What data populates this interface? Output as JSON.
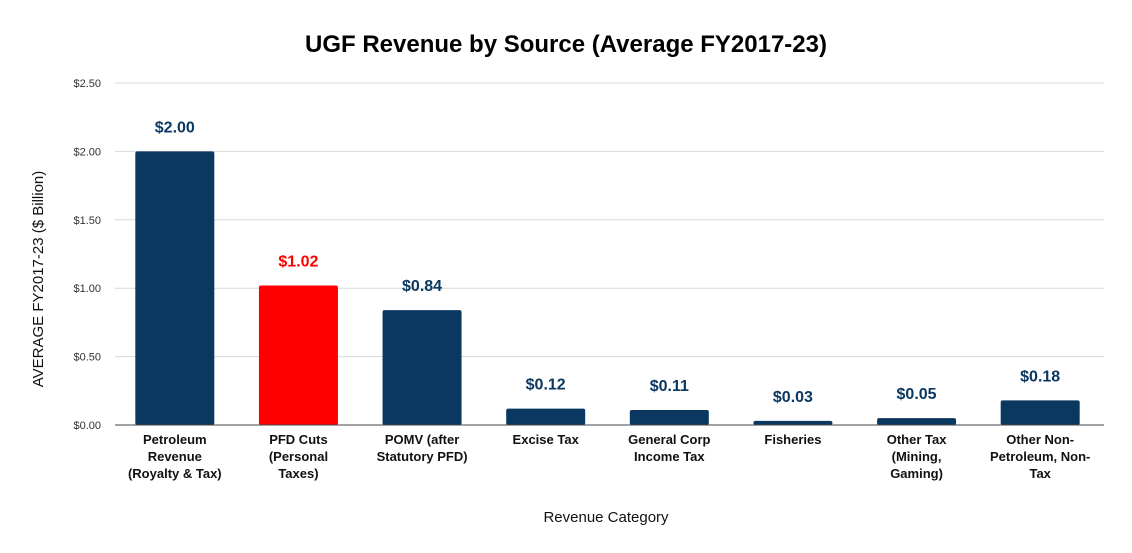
{
  "chart_data": {
    "type": "bar",
    "title": "UGF Revenue by Source (Average FY2017-23)",
    "xlabel": "Revenue Category",
    "ylabel": "AVERAGE FY2017-23 ($ Billion)",
    "ylim": [
      0,
      2.5
    ],
    "yticks": [
      {
        "value": 0,
        "label": "$0.00"
      },
      {
        "value": 0.5,
        "label": "$0.50"
      },
      {
        "value": 1.0,
        "label": "$1.00"
      },
      {
        "value": 1.5,
        "label": "$1.50"
      },
      {
        "value": 2.0,
        "label": "$2.00"
      },
      {
        "value": 2.5,
        "label": "$2.50"
      }
    ],
    "grid": true,
    "legend": "none",
    "categories": [
      [
        "Petroleum",
        "Revenue",
        "(Royalty & Tax)"
      ],
      [
        "PFD Cuts",
        "(Personal",
        "Taxes)"
      ],
      [
        "POMV (after",
        "Statutory PFD)"
      ],
      [
        "Excise Tax"
      ],
      [
        "General Corp",
        "Income Tax"
      ],
      [
        "Fisheries"
      ],
      [
        "Other Tax",
        "(Mining,",
        "Gaming)"
      ],
      [
        "Other Non-",
        "Petroleum, Non-",
        "Tax"
      ]
    ],
    "values": [
      2.0,
      1.02,
      0.84,
      0.12,
      0.11,
      0.03,
      0.05,
      0.18
    ],
    "data_labels": [
      "$2.00",
      "$1.02",
      "$0.84",
      "$0.12",
      "$0.11",
      "$0.03",
      "$0.05",
      "$0.18"
    ],
    "colors": [
      "#0b3861",
      "#ff0000",
      "#0b3861",
      "#0b3861",
      "#0b3861",
      "#0b3861",
      "#0b3861",
      "#0b3861"
    ],
    "label_colors": [
      "#0b3861",
      "#ff0000",
      "#0b3861",
      "#0b3861",
      "#0b3861",
      "#0b3861",
      "#0b3861",
      "#0b3861"
    ]
  }
}
